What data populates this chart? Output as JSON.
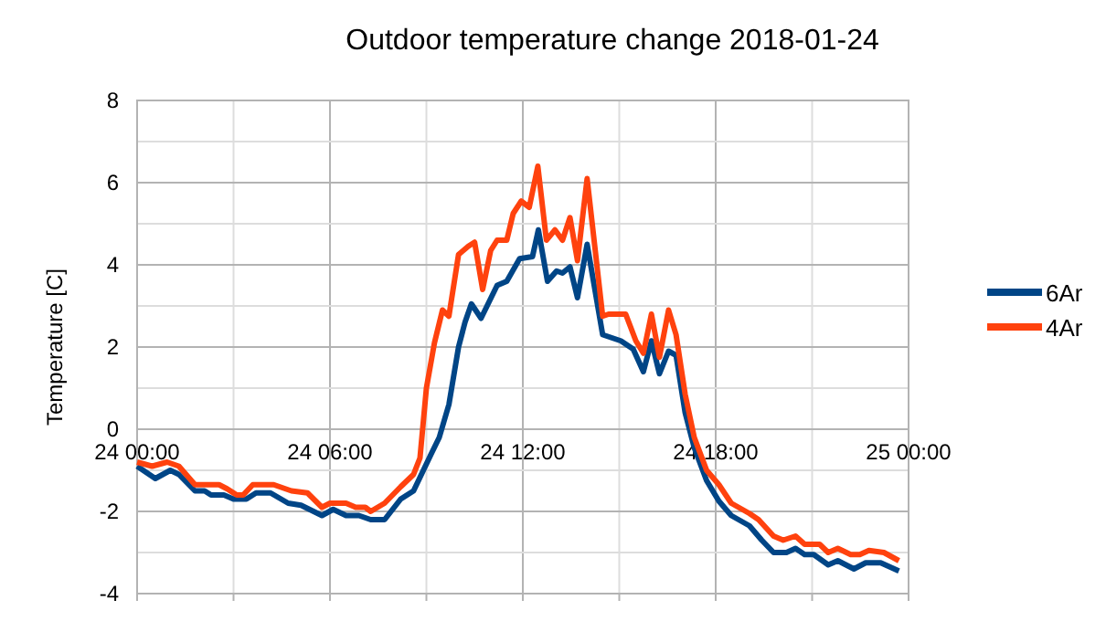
{
  "chart_data": {
    "type": "line",
    "title": "Outdoor temperature change 2018-01-24",
    "ylabel": "Temperature [C]",
    "xlim": [
      "2018-01-24T00:00",
      "2018-01-25T00:00"
    ],
    "ylim": [
      -4,
      8
    ],
    "xticks": [
      {
        "value": "2018-01-24T00:00",
        "label": "24 00:00"
      },
      {
        "value": "2018-01-24T03:00",
        "label": null
      },
      {
        "value": "2018-01-24T06:00",
        "label": "24 06:00"
      },
      {
        "value": "2018-01-24T09:00",
        "label": null
      },
      {
        "value": "2018-01-24T12:00",
        "label": "24 12:00"
      },
      {
        "value": "2018-01-24T15:00",
        "label": null
      },
      {
        "value": "2018-01-24T18:00",
        "label": "24 18:00"
      },
      {
        "value": "2018-01-24T21:00",
        "label": null
      },
      {
        "value": "2018-01-25T00:00",
        "label": "25 00:00"
      }
    ],
    "yticks": [
      -4,
      {
        "value": -3,
        "label": null
      },
      -2,
      {
        "value": -1,
        "label": null
      },
      0,
      {
        "value": 1,
        "label": null
      },
      2,
      {
        "value": 3,
        "label": null
      },
      4,
      {
        "value": 5,
        "label": null
      },
      6,
      {
        "value": 7,
        "label": null
      },
      8
    ],
    "grid": true,
    "legend": "right",
    "marker": "none",
    "line_style": "solid",
    "series": [
      {
        "name": "6Ar",
        "color": "#004586",
        "x": [
          "2018-01-24T00:00",
          "2018-01-24T00:34",
          "2018-01-24T01:02",
          "2018-01-24T01:18",
          "2018-01-24T01:48",
          "2018-01-24T02:06",
          "2018-01-24T02:18",
          "2018-01-24T02:42",
          "2018-01-24T03:00",
          "2018-01-24T03:24",
          "2018-01-24T03:42",
          "2018-01-24T04:09",
          "2018-01-24T04:42",
          "2018-01-24T05:06",
          "2018-01-24T05:45",
          "2018-01-24T06:06",
          "2018-01-24T06:30",
          "2018-01-24T06:54",
          "2018-01-24T07:16",
          "2018-01-24T07:42",
          "2018-01-24T08:12",
          "2018-01-24T08:36",
          "2018-01-24T09:09",
          "2018-01-24T09:24",
          "2018-01-24T09:42",
          "2018-01-24T10:00",
          "2018-01-24T10:12",
          "2018-01-24T10:24",
          "2018-01-24T10:42",
          "2018-01-24T11:12",
          "2018-01-24T11:30",
          "2018-01-24T11:54",
          "2018-01-24T12:18",
          "2018-01-24T12:29",
          "2018-01-24T12:46",
          "2018-01-24T13:03",
          "2018-01-24T13:14",
          "2018-01-24T13:28",
          "2018-01-24T13:42",
          "2018-01-24T14:00",
          "2018-01-24T14:29",
          "2018-01-24T15:03",
          "2018-01-24T15:26",
          "2018-01-24T15:45",
          "2018-01-24T16:00",
          "2018-01-24T16:15",
          "2018-01-24T16:32",
          "2018-01-24T16:46",
          "2018-01-24T17:03",
          "2018-01-24T17:20",
          "2018-01-24T17:43",
          "2018-01-24T18:06",
          "2018-01-24T18:29",
          "2018-01-24T19:03",
          "2018-01-24T19:26",
          "2018-01-24T19:48",
          "2018-01-24T20:12",
          "2018-01-24T20:29",
          "2018-01-24T20:46",
          "2018-01-24T21:03",
          "2018-01-24T21:30",
          "2018-01-24T21:48",
          "2018-01-24T22:18",
          "2018-01-24T22:40",
          "2018-01-24T23:08",
          "2018-01-24T23:42"
        ],
        "values": [
          -0.9,
          -1.2,
          -1.0,
          -1.1,
          -1.5,
          -1.5,
          -1.6,
          -1.6,
          -1.7,
          -1.7,
          -1.55,
          -1.55,
          -1.8,
          -1.85,
          -2.1,
          -1.95,
          -2.1,
          -2.1,
          -2.2,
          -2.2,
          -1.7,
          -1.5,
          -0.6,
          -0.2,
          0.6,
          2.0,
          2.6,
          3.05,
          2.7,
          3.5,
          3.6,
          4.15,
          4.2,
          4.85,
          3.6,
          3.85,
          3.8,
          3.95,
          3.2,
          4.5,
          2.3,
          2.15,
          1.95,
          1.4,
          2.15,
          1.35,
          1.9,
          1.8,
          0.4,
          -0.45,
          -1.25,
          -1.75,
          -2.1,
          -2.35,
          -2.7,
          -3.0,
          -3.0,
          -2.9,
          -3.05,
          -3.05,
          -3.3,
          -3.2,
          -3.4,
          -3.25,
          -3.25,
          -3.45
        ]
      },
      {
        "name": "4Ar",
        "color": "#ff420e",
        "x": [
          "2018-01-24T00:00",
          "2018-01-24T00:28",
          "2018-01-24T00:56",
          "2018-01-24T01:18",
          "2018-01-24T01:48",
          "2018-01-24T02:33",
          "2018-01-24T02:48",
          "2018-01-24T03:06",
          "2018-01-24T03:18",
          "2018-01-24T03:36",
          "2018-01-24T04:15",
          "2018-01-24T04:48",
          "2018-01-24T05:18",
          "2018-01-24T05:45",
          "2018-01-24T06:00",
          "2018-01-24T06:30",
          "2018-01-24T06:48",
          "2018-01-24T07:06",
          "2018-01-24T07:16",
          "2018-01-24T07:42",
          "2018-01-24T08:12",
          "2018-01-24T08:36",
          "2018-01-24T08:48",
          "2018-01-24T09:00",
          "2018-01-24T09:15",
          "2018-01-24T09:30",
          "2018-01-24T09:42",
          "2018-01-24T10:00",
          "2018-01-24T10:18",
          "2018-01-24T10:30",
          "2018-01-24T10:45",
          "2018-01-24T11:00",
          "2018-01-24T11:12",
          "2018-01-24T11:30",
          "2018-01-24T11:42",
          "2018-01-24T11:57",
          "2018-01-24T12:12",
          "2018-01-24T12:28",
          "2018-01-24T12:44",
          "2018-01-24T13:00",
          "2018-01-24T13:14",
          "2018-01-24T13:28",
          "2018-01-24T13:42",
          "2018-01-24T14:00",
          "2018-01-24T14:29",
          "2018-01-24T14:40",
          "2018-01-24T15:12",
          "2018-01-24T15:31",
          "2018-01-24T15:45",
          "2018-01-24T16:00",
          "2018-01-24T16:15",
          "2018-01-24T16:32",
          "2018-01-24T16:46",
          "2018-01-24T17:03",
          "2018-01-24T17:20",
          "2018-01-24T17:43",
          "2018-01-24T18:06",
          "2018-01-24T18:29",
          "2018-01-24T19:03",
          "2018-01-24T19:20",
          "2018-01-24T19:48",
          "2018-01-24T20:06",
          "2018-01-24T20:29",
          "2018-01-24T20:46",
          "2018-01-24T21:14",
          "2018-01-24T21:30",
          "2018-01-24T21:48",
          "2018-01-24T22:12",
          "2018-01-24T22:29",
          "2018-01-24T22:46",
          "2018-01-24T23:14",
          "2018-01-24T23:42"
        ],
        "values": [
          -0.8,
          -0.9,
          -0.8,
          -0.9,
          -1.35,
          -1.35,
          -1.45,
          -1.6,
          -1.6,
          -1.35,
          -1.35,
          -1.5,
          -1.55,
          -1.9,
          -1.8,
          -1.8,
          -1.9,
          -1.9,
          -2.0,
          -1.8,
          -1.4,
          -1.1,
          -0.7,
          1.0,
          2.1,
          2.9,
          2.75,
          4.25,
          4.45,
          4.55,
          3.4,
          4.35,
          4.6,
          4.6,
          5.25,
          5.55,
          5.4,
          6.4,
          4.6,
          4.85,
          4.6,
          5.15,
          4.1,
          6.1,
          2.75,
          2.8,
          2.8,
          2.15,
          1.85,
          2.8,
          1.75,
          2.9,
          2.3,
          0.85,
          -0.2,
          -1.0,
          -1.35,
          -1.8,
          -2.05,
          -2.2,
          -2.6,
          -2.7,
          -2.6,
          -2.8,
          -2.8,
          -3.0,
          -2.9,
          -3.05,
          -3.05,
          -2.95,
          -3.0,
          -3.2
        ]
      }
    ]
  }
}
